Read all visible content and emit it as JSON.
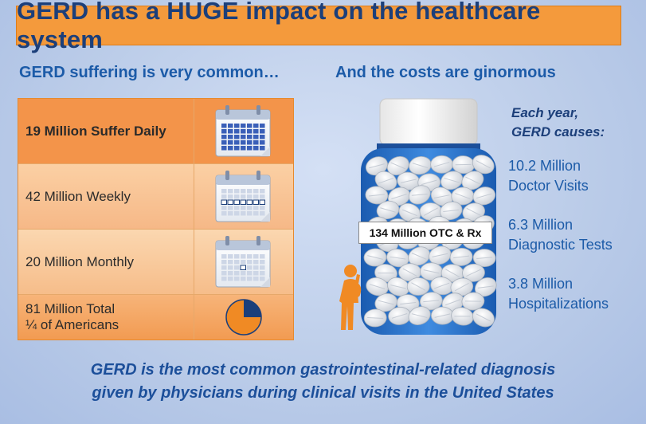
{
  "title": "GERD has a HUGE impact on the healthcare system",
  "left_heading": "GERD suffering is very common…",
  "right_heading": "And the costs are ginormous",
  "rows": [
    {
      "text": "19 Million Suffer Daily",
      "icon": "calendar-daily-icon"
    },
    {
      "text": "42 Million Weekly",
      "icon": "calendar-weekly-icon"
    },
    {
      "text": "20 Million Monthly",
      "icon": "calendar-monthly-icon"
    },
    {
      "text_line1": "81 Million Total",
      "text_line2": "¼ of Americans",
      "icon": "pie-quarter-icon",
      "fraction": 0.25
    }
  ],
  "bottle_label": "134 Million OTC & Rx",
  "causes": {
    "line1": "Each year,",
    "line2": "GERD causes:"
  },
  "stats": [
    {
      "value": "10.2 Million",
      "label": "Doctor Visits"
    },
    {
      "value": "6.3 Million",
      "label": "Diagnostic Tests"
    },
    {
      "value": "3.8 Million",
      "label": "Hospitalizations"
    }
  ],
  "footer": {
    "line1": "GERD is the most common gastrointestinal-related diagnosis",
    "line2": "given by physicians during clinical visits in the United States"
  },
  "colors": {
    "title_banner": "#f49a3c",
    "heading_blue": "#1c5ba8",
    "navy": "#1c3f7a",
    "bottle_blue": "#1f66c1",
    "person_orange": "#f08a24"
  }
}
